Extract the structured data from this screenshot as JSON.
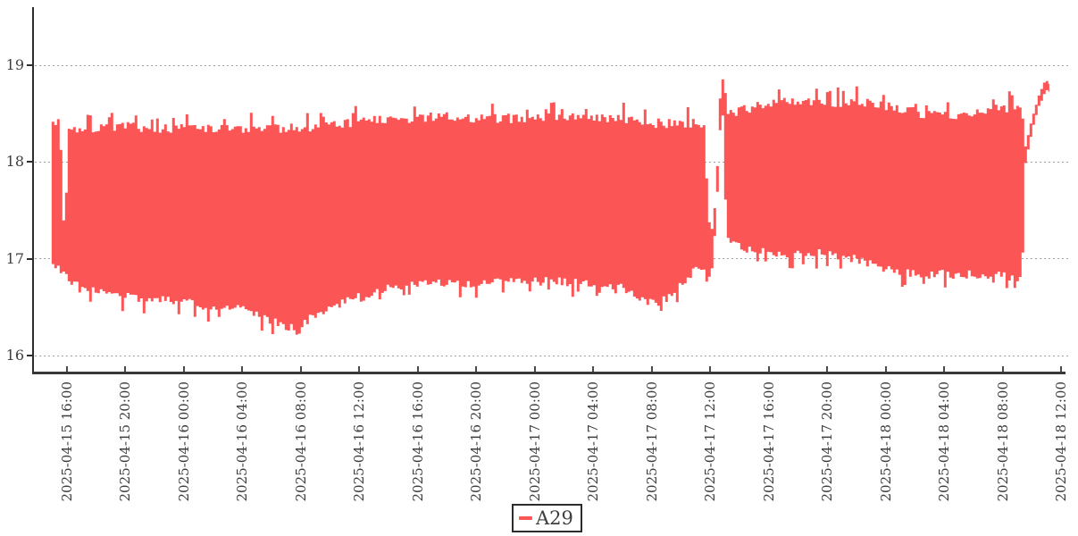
{
  "chart_data": {
    "type": "line",
    "title": "",
    "grid": "horizontal dotted gridlines",
    "legend": {
      "position": "bottom-center",
      "items": [
        "A29"
      ]
    },
    "y_axis": {
      "ticks": [
        16,
        17,
        18,
        19
      ],
      "range": [
        15.82,
        19.6
      ]
    },
    "x_axis": {
      "tick_interval": "4 hours",
      "tick_labels": [
        "2025-04-15 16:00",
        "2025-04-15 20:00",
        "2025-04-16 00:00",
        "2025-04-16 04:00",
        "2025-04-16 08:00",
        "2025-04-16 12:00",
        "2025-04-16 16:00",
        "2025-04-16 20:00",
        "2025-04-17 00:00",
        "2025-04-17 04:00",
        "2025-04-17 08:00",
        "2025-04-17 12:00",
        "2025-04-17 16:00",
        "2025-04-17 20:00",
        "2025-04-18 00:00",
        "2025-04-18 04:00",
        "2025-04-18 08:00",
        "2025-04-18 12:00"
      ]
    },
    "series": [
      {
        "name": "A29",
        "color": "#fb5555",
        "style": "high-frequency noisy signal that renders as a solid band between its min/max envelope",
        "envelope_units": "hours since 2025-04-15 16:00 -> [min, max] value",
        "envelope": [
          [
            -1.05,
            16.9,
            18.45
          ],
          [
            -0.55,
            16.88,
            18.45
          ],
          [
            -0.45,
            16.85,
            18.3
          ],
          [
            -0.3,
            16.85,
            17.7
          ],
          [
            -0.12,
            16.8,
            16.98
          ],
          [
            0.05,
            16.75,
            18.35
          ],
          [
            0.8,
            16.65,
            18.4
          ],
          [
            2.0,
            16.6,
            18.4
          ],
          [
            4.0,
            16.55,
            18.42
          ],
          [
            6.0,
            16.52,
            18.4
          ],
          [
            8.0,
            16.5,
            18.4
          ],
          [
            10.0,
            16.45,
            18.4
          ],
          [
            12.0,
            16.42,
            18.4
          ],
          [
            13.5,
            16.35,
            18.4
          ],
          [
            14.6,
            16.28,
            18.4
          ],
          [
            15.2,
            16.22,
            18.4
          ],
          [
            16.2,
            16.3,
            18.4
          ],
          [
            17.5,
            16.42,
            18.42
          ],
          [
            19.0,
            16.5,
            18.45
          ],
          [
            21.0,
            16.6,
            18.5
          ],
          [
            23.0,
            16.68,
            18.5
          ],
          [
            26.0,
            16.7,
            18.52
          ],
          [
            29.0,
            16.7,
            18.5
          ],
          [
            32.0,
            16.72,
            18.5
          ],
          [
            35.0,
            16.7,
            18.52
          ],
          [
            37.5,
            16.68,
            18.5
          ],
          [
            39.0,
            16.55,
            18.48
          ],
          [
            40.0,
            16.48,
            18.45
          ],
          [
            41.0,
            16.52,
            18.45
          ],
          [
            42.0,
            16.7,
            18.45
          ],
          [
            43.0,
            16.85,
            18.45
          ],
          [
            43.6,
            16.8,
            18.42
          ],
          [
            43.9,
            16.72,
            17.5
          ],
          [
            44.15,
            16.9,
            17.25
          ],
          [
            44.45,
            17.5,
            17.8
          ],
          [
            44.66,
            18.2,
            18.55
          ],
          [
            44.72,
            18.5,
            18.86
          ],
          [
            44.82,
            18.6,
            18.9
          ],
          [
            44.92,
            18.3,
            18.88
          ],
          [
            45.1,
            17.25,
            18.5
          ],
          [
            45.4,
            17.1,
            18.55
          ],
          [
            46.5,
            17.05,
            18.6
          ],
          [
            48.0,
            17.0,
            18.65
          ],
          [
            50.0,
            17.0,
            18.68
          ],
          [
            52.0,
            17.0,
            18.65
          ],
          [
            54.0,
            16.95,
            18.68
          ],
          [
            55.5,
            16.88,
            18.65
          ],
          [
            57.0,
            16.8,
            18.6
          ],
          [
            58.5,
            16.78,
            18.55
          ],
          [
            60.0,
            16.8,
            18.52
          ],
          [
            61.8,
            16.78,
            18.55
          ],
          [
            63.5,
            16.8,
            18.6
          ],
          [
            65.0,
            16.76,
            18.62
          ],
          [
            65.35,
            16.75,
            18.6
          ],
          [
            65.55,
            17.95,
            18.15
          ],
          [
            66.0,
            18.3,
            18.45
          ],
          [
            66.5,
            18.58,
            18.7
          ],
          [
            66.85,
            18.7,
            18.82
          ],
          [
            67.05,
            18.74,
            18.84
          ],
          [
            67.2,
            18.72,
            18.8
          ]
        ],
        "features": {
          "start_dip": "brief pinch down to ~16.85 around 2025-04-15 15:30 before band resumes",
          "minimum": "lowest band values ~16.2 near 2025-04-16 07:00-08:30",
          "spike": "thin transition climbing to peak ~18.9 just after 2025-04-17 12:00",
          "post_spike_band": "band shifts up: bottom ~17.0, top ~18.65",
          "final_rise": "band ends ~2025-04-18 09:30, thin staircase rises to ~18.8 by ~11:10"
        }
      }
    ]
  },
  "colors": {
    "series": "#fb5555",
    "axis_line": "#2e2e2e",
    "grid_line": "#9f9f9f",
    "label_text": "#3d3d3d"
  }
}
